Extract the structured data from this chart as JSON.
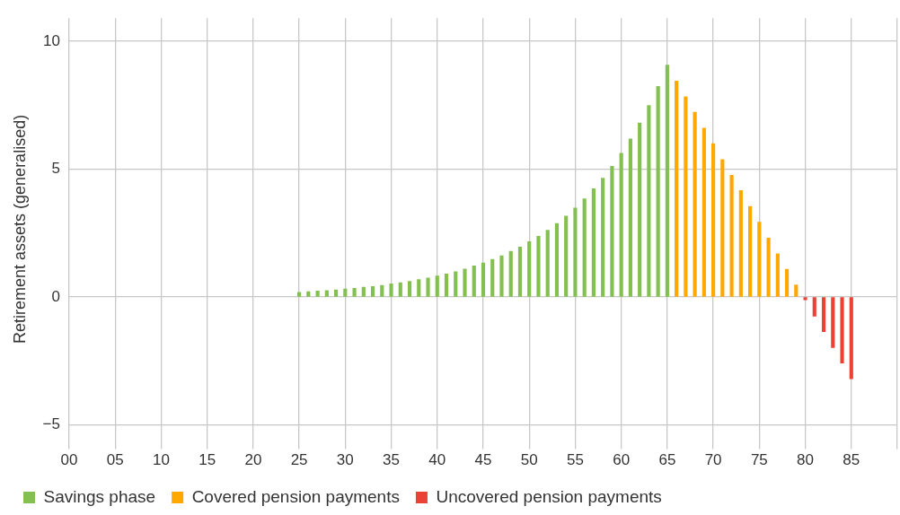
{
  "chart_data": {
    "type": "bar",
    "ylabel": "Retirement assets (generalised)",
    "xlim": [
      0,
      90
    ],
    "xticks": [
      {
        "value": 0,
        "label": "00"
      },
      {
        "value": 5,
        "label": "05"
      },
      10,
      15,
      20,
      25,
      30,
      35,
      40,
      45,
      50,
      55,
      60,
      65,
      70,
      75,
      80,
      85,
      {
        "value": 90,
        "label": null
      }
    ],
    "ylim": [
      -5.6,
      10.9
    ],
    "yticks": [
      {
        "value": -5,
        "label": "−5"
      },
      0,
      5,
      10
    ],
    "grid": true,
    "legend": "bottom left",
    "series": [
      {
        "name": "Savings phase",
        "color": "#84c04f",
        "x": [
          25,
          26,
          27,
          28,
          29,
          30,
          31,
          32,
          33,
          34,
          35,
          36,
          37,
          38,
          39,
          40,
          41,
          42,
          43,
          44,
          45,
          46,
          47,
          48,
          49,
          50,
          51,
          52,
          53,
          54,
          55,
          56,
          57,
          58,
          59,
          60,
          61,
          62,
          63,
          64,
          65
        ],
        "values": [
          0.18,
          0.21,
          0.23,
          0.25,
          0.28,
          0.31,
          0.34,
          0.38,
          0.41,
          0.45,
          0.51,
          0.56,
          0.61,
          0.68,
          0.74,
          0.82,
          0.9,
          0.99,
          1.09,
          1.21,
          1.33,
          1.47,
          1.61,
          1.78,
          1.95,
          2.16,
          2.37,
          2.61,
          2.87,
          3.16,
          3.48,
          3.84,
          4.23,
          4.64,
          5.11,
          5.62,
          6.18,
          6.8,
          7.48,
          8.23,
          9.06
        ]
      },
      {
        "name": "Covered pension payments",
        "color": "#ffa800",
        "x": [
          66,
          67,
          68,
          69,
          70,
          71,
          72,
          73,
          74,
          75,
          76,
          77,
          78,
          79
        ],
        "values": [
          8.44,
          7.83,
          7.22,
          6.6,
          5.99,
          5.37,
          4.76,
          4.16,
          3.54,
          2.92,
          2.3,
          1.69,
          1.08,
          0.47
        ]
      },
      {
        "name": "Uncovered pension payments",
        "color": "#ea4335",
        "x": [
          80,
          81,
          82,
          83,
          84,
          85
        ],
        "values": [
          -0.11,
          -0.75,
          -1.36,
          -1.98,
          -2.59,
          -3.2
        ]
      }
    ]
  }
}
